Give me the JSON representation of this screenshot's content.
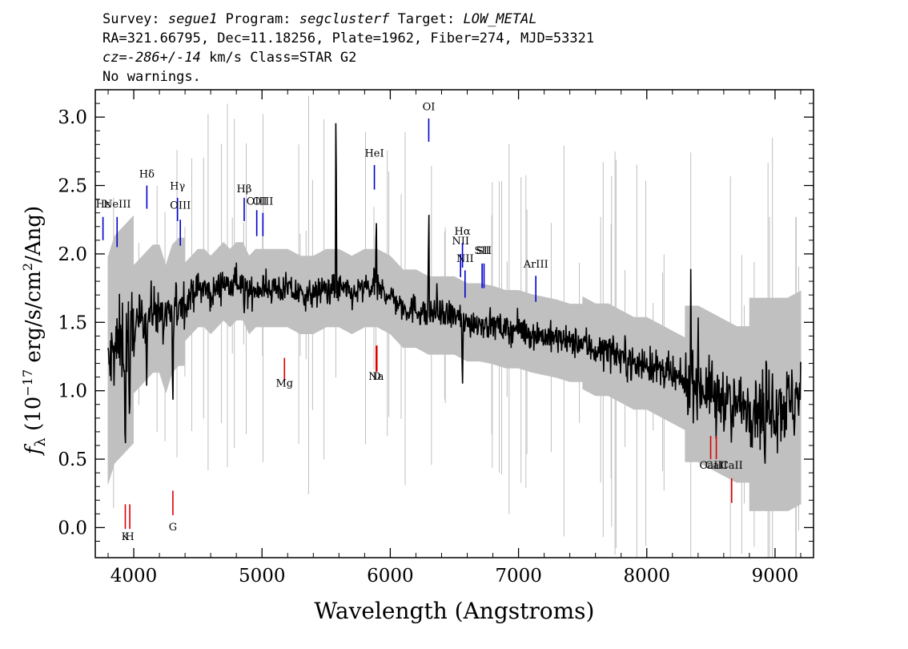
{
  "header": {
    "survey_label": "Survey:",
    "survey": "segue1",
    "program_label": "Program:",
    "program": "segclusterf",
    "target_label": "Target:",
    "target": "LOW_METAL",
    "line2": "RA=321.66795, Dec=11.18256, Plate=1962, Fiber=274, MJD=53321",
    "cz_prefix": "cz=",
    "cz_value": "-286+/-14",
    "cz_suffix": " km/s Class=STAR G2",
    "line4": "No warnings."
  },
  "colors": {
    "flux": "#000000",
    "error_band": "#c0c0c0",
    "emission_marker": "#0000cc",
    "absorption_marker": "#dd0000"
  },
  "chart_data": {
    "type": "line",
    "xlabel": "Wavelength (Angstroms)",
    "ylabel_main": "f",
    "ylabel_sub": "λ",
    "ylabel_rest": " (10",
    "ylabel_exp1": "−17",
    "ylabel_mid": " erg/s/cm",
    "ylabel_exp2": "2",
    "ylabel_end": "/Ang)",
    "xlim": [
      3700,
      9300
    ],
    "ylim": [
      -0.22,
      3.2
    ],
    "xticks": [
      "4000",
      "5000",
      "6000",
      "7000",
      "8000",
      "9000"
    ],
    "yticks": [
      "0.0",
      "0.5",
      "1.0",
      "1.5",
      "2.0",
      "2.5",
      "3.0"
    ],
    "series": [
      {
        "role": "flux",
        "x": [
          3800,
          3850,
          3900,
          3950,
          4000,
          4050,
          4100,
          4150,
          4200,
          4250,
          4300,
          4350,
          4400,
          4450,
          4500,
          4550,
          4600,
          4650,
          4700,
          4750,
          4800,
          4850,
          4900,
          4950,
          5000,
          5100,
          5200,
          5300,
          5400,
          5500,
          5600,
          5700,
          5800,
          5900,
          6000,
          6100,
          6200,
          6300,
          6400,
          6500,
          6600,
          6700,
          6800,
          6900,
          7000,
          7100,
          7200,
          7300,
          7400,
          7500,
          7600,
          7700,
          7800,
          7900,
          8000,
          8100,
          8200,
          8300,
          8400,
          8500,
          8600,
          8700,
          8800,
          8900,
          9000,
          9100,
          9200
        ],
        "y": [
          1.15,
          1.3,
          1.35,
          1.4,
          1.45,
          1.5,
          1.55,
          1.6,
          1.6,
          1.45,
          1.6,
          1.65,
          1.65,
          1.7,
          1.75,
          1.75,
          1.7,
          1.75,
          1.8,
          1.75,
          1.8,
          1.8,
          1.7,
          1.75,
          1.75,
          1.75,
          1.75,
          1.7,
          1.7,
          1.75,
          1.75,
          1.7,
          1.75,
          1.75,
          1.7,
          1.6,
          1.6,
          1.55,
          1.55,
          1.55,
          1.5,
          1.5,
          1.48,
          1.45,
          1.45,
          1.42,
          1.4,
          1.38,
          1.35,
          1.35,
          1.3,
          1.3,
          1.25,
          1.2,
          1.2,
          1.15,
          1.1,
          1.05,
          1.05,
          1.0,
          0.95,
          0.9,
          0.9,
          0.9,
          0.9,
          0.9,
          0.95
        ]
      }
    ],
    "emission_lines": [
      {
        "label": "Hε",
        "x": 3760,
        "label_y": 2.34,
        "y0": 2.27,
        "y1": 2.1
      },
      {
        "label": "NeIII",
        "x": 3870,
        "label_y": 2.34,
        "y0": 2.27,
        "y1": 2.05
      },
      {
        "label": "Hδ",
        "x": 4102,
        "label_y": 2.56,
        "y0": 2.5,
        "y1": 2.33
      },
      {
        "label": "Hγ",
        "x": 4341,
        "label_y": 2.47,
        "y0": 2.41,
        "y1": 2.24
      },
      {
        "label": "OIII",
        "x": 4363,
        "label_y": 2.33,
        "y0": 2.25,
        "y1": 2.06
      },
      {
        "label": "Hβ",
        "x": 4861,
        "label_y": 2.45,
        "y0": 2.41,
        "y1": 2.24
      },
      {
        "label": "OIII",
        "x": 4959,
        "label_y": 2.36,
        "y0": 2.32,
        "y1": 2.13
      },
      {
        "label": "OIII",
        "x": 5007,
        "label_y": 2.36,
        "y0": 2.3,
        "y1": 2.13
      },
      {
        "label": "HeI",
        "x": 5876,
        "label_y": 2.71,
        "y0": 2.65,
        "y1": 2.47
      },
      {
        "label": "OI",
        "x": 6300,
        "label_y": 3.05,
        "y0": 2.99,
        "y1": 2.82
      },
      {
        "label": "NII",
        "x": 6548,
        "label_y": 2.07,
        "y0": 2.0,
        "y1": 1.83
      },
      {
        "label": "Hα",
        "x": 6563,
        "label_y": 2.14,
        "y0": 2.08,
        "y1": 1.9
      },
      {
        "label": "NII",
        "x": 6583,
        "label_y": 1.94,
        "y0": 1.88,
        "y1": 1.68
      },
      {
        "label": "SII",
        "x": 6716,
        "label_y": 2.0,
        "y0": 1.93,
        "y1": 1.75
      },
      {
        "label": "SII",
        "x": 6731,
        "label_y": 2.0,
        "y0": 1.93,
        "y1": 1.75
      },
      {
        "label": "ArIII",
        "x": 7135,
        "label_y": 1.9,
        "y0": 1.84,
        "y1": 1.65
      }
    ],
    "absorption_lines": [
      {
        "label": "K",
        "x": 3934,
        "label_y": -0.09,
        "y0": 0.17,
        "y1": -0.01
      },
      {
        "label": "H",
        "x": 3969,
        "label_y": -0.09,
        "y0": 0.17,
        "y1": -0.01
      },
      {
        "label": "G",
        "x": 4305,
        "label_y": -0.02,
        "y0": 0.27,
        "y1": 0.09
      },
      {
        "label": "Mg",
        "x": 5175,
        "label_y": 1.03,
        "y0": 1.24,
        "y1": 1.07
      },
      {
        "label": "Na",
        "x": 5890,
        "label_y": 1.08,
        "y0": 1.33,
        "y1": 1.14
      },
      {
        "label": "D",
        "x": 5896,
        "label_y": 1.08,
        "y0": 1.33,
        "y1": 1.14
      },
      {
        "label": "CaII",
        "x": 8498,
        "label_y": 0.43,
        "y0": 0.67,
        "y1": 0.5
      },
      {
        "label": "CaII",
        "x": 8542,
        "label_y": 0.43,
        "y0": 0.67,
        "y1": 0.5
      },
      {
        "label": "CaII",
        "x": 8662,
        "label_y": 0.43,
        "y0": 0.36,
        "y1": 0.18
      }
    ],
    "grid": false,
    "legend": "none"
  }
}
